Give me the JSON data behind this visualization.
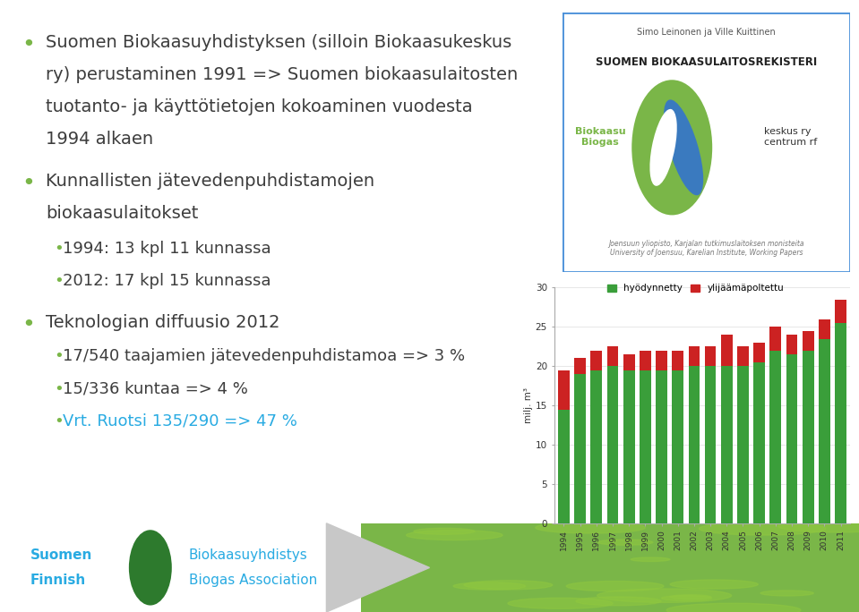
{
  "years": [
    1994,
    1995,
    1996,
    1997,
    1998,
    1999,
    2000,
    2001,
    2002,
    2003,
    2004,
    2005,
    2006,
    2007,
    2008,
    2009,
    2010,
    2011
  ],
  "green_values": [
    14.5,
    19.0,
    19.5,
    20.0,
    19.5,
    19.5,
    19.5,
    19.5,
    20.0,
    20.0,
    20.0,
    20.0,
    20.5,
    22.0,
    21.5,
    22.0,
    23.5,
    25.5
  ],
  "red_values": [
    5.0,
    2.0,
    2.5,
    2.5,
    2.0,
    2.5,
    2.5,
    2.5,
    2.5,
    2.5,
    4.0,
    2.5,
    2.5,
    3.0,
    2.5,
    2.5,
    2.5,
    3.0
  ],
  "green_color": "#3a9e3a",
  "red_color": "#cc2222",
  "ylim": [
    0,
    30
  ],
  "yticks": [
    0,
    5,
    10,
    15,
    20,
    25,
    30
  ],
  "ylabel": "milj. m³",
  "legend_green": "hyödynnetty",
  "legend_red": "ylijäämäpoltettu",
  "bg_color": "#ffffff",
  "text_color": "#333333",
  "bullet_color_green": "#7ab648",
  "bullet_color_cyan": "#29abe2",
  "main_text_lines": [
    "Suomen Biokaasuyhdistyksen (silloin Biokaasukeskus",
    "ry) perustaminen 1991 => Suomen biokaasulaitosten",
    "tuotanto- ja käyttötietojen kokoaminen vuodesta",
    "1994 alkaen"
  ],
  "sub_bullet1_lines": [
    "Kunnallisten jätevedenpuhdistamojen",
    "biokaasulaitokset"
  ],
  "sub_sub1": "1994: 13 kpl 11 kunnassa",
  "sub_sub2": "2012: 17 kpl 15 kunnassa",
  "main_text2": "Teknologian diffuusio 2012",
  "sub_bullet2_lines": [
    "17/540 taajamien jätevedenpuhdistamoa => 3 %",
    "15/336 kuntaa => 4 %"
  ],
  "cyan_line": "Vrt. Ruotsi 135/290 => 47 %",
  "logo_author": "Simo Leinonen ja Ville Kuittinen",
  "logo_title": "SUOMEN BIOKAASULAITOSREKISTERI",
  "logo_name1": "Biokaasu\nBiogas",
  "logo_name2": "keskus ry\ncentrum rf",
  "logo_footer": "Joensuun yliopisto, Karjalan tutkimuslaitoksen monisteita\nUniversity of Joensuu, Karelian Institute, Working Papers",
  "bottom_text1a": "Suomen",
  "bottom_text1b": "Finnish",
  "bottom_text2a": "Biokaasuyhdistys",
  "bottom_text2b": "Biogas Association",
  "bottom_bg": "#f0f0f0",
  "leaf_green": "#7ab648",
  "logo_border_color": "#4a90d9",
  "logo_bg": "#ffffff"
}
